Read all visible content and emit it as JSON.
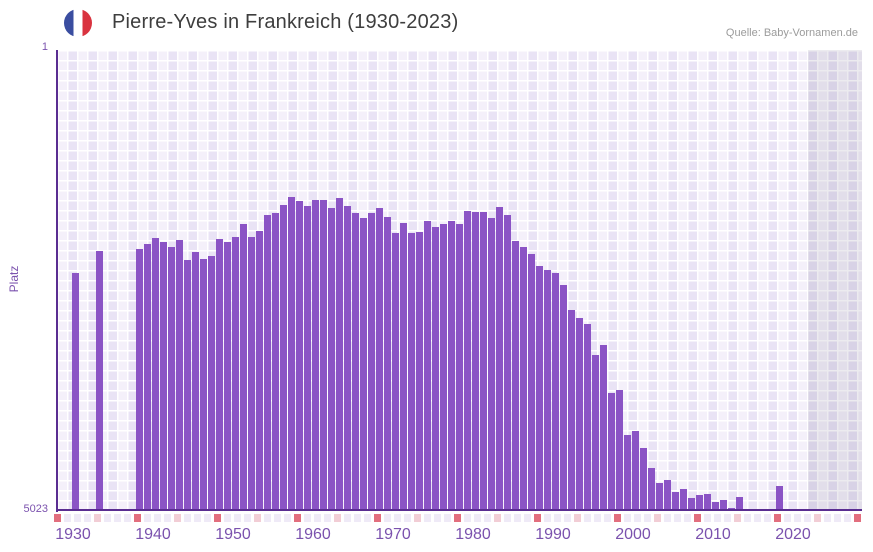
{
  "header": {
    "title": "Pierre-Yves in Frankreich (1930-2023)",
    "source": "Quelle: Baby-Vornamen.de",
    "flag_icon": "france-flag-icon"
  },
  "axes": {
    "y_label": "Platz",
    "y_top_tick": "1",
    "y_bottom_tick": "5023",
    "x_ticks": [
      "1930",
      "1940",
      "1950",
      "1960",
      "1970",
      "1980",
      "1990",
      "2000",
      "2010",
      "2020"
    ]
  },
  "colors": {
    "bar": "#8B54C5",
    "axis_line": "#5A2D91",
    "axis_text": "#7B52AE",
    "title_text": "#3E3E3E",
    "source_text": "#9B9B9B",
    "grid_stripe_light": "#F4F0FA",
    "grid_stripe_dark": "#E9E3F5",
    "tick_red": "#E26E7E",
    "tick_pink": "#F2CDD5",
    "flag_blue": "#3A4DA0",
    "flag_red": "#D9333F"
  },
  "chart_data": {
    "type": "bar",
    "title": "Pierre-Yves in Frankreich (1930-2023)",
    "xlabel": "",
    "ylabel": "Platz",
    "y_axis_inverted": true,
    "ylim": [
      1,
      5023
    ],
    "x_range_years": [
      1928,
      2028
    ],
    "x_ticks": [
      1930,
      1940,
      1950,
      1960,
      1970,
      1980,
      1990,
      2000,
      2010,
      2020
    ],
    "grid": true,
    "legend": "none",
    "no_data_shaded_region_years": [
      2022,
      2028
    ],
    "series_name": "Platz von Pierre-Yves in Frankreich",
    "points": [
      [
        1930,
        2427
      ],
      [
        1933,
        2187
      ],
      [
        1938,
        2172
      ],
      [
        1939,
        2118
      ],
      [
        1940,
        2046
      ],
      [
        1941,
        2089
      ],
      [
        1942,
        2144
      ],
      [
        1943,
        2071
      ],
      [
        1944,
        2292
      ],
      [
        1945,
        2202
      ],
      [
        1946,
        2281
      ],
      [
        1947,
        2245
      ],
      [
        1948,
        2060
      ],
      [
        1949,
        2092
      ],
      [
        1950,
        2043
      ],
      [
        1951,
        1900
      ],
      [
        1952,
        2041
      ],
      [
        1953,
        1969
      ],
      [
        1954,
        1798
      ],
      [
        1955,
        1780
      ],
      [
        1956,
        1686
      ],
      [
        1957,
        1602
      ],
      [
        1958,
        1646
      ],
      [
        1959,
        1700
      ],
      [
        1960,
        1635
      ],
      [
        1961,
        1635
      ],
      [
        1962,
        1719
      ],
      [
        1963,
        1617
      ],
      [
        1964,
        1697
      ],
      [
        1965,
        1780
      ],
      [
        1966,
        1835
      ],
      [
        1967,
        1780
      ],
      [
        1968,
        1725
      ],
      [
        1969,
        1817
      ],
      [
        1970,
        1991
      ],
      [
        1971,
        1889
      ],
      [
        1972,
        1991
      ],
      [
        1973,
        1980
      ],
      [
        1974,
        1864
      ],
      [
        1975,
        1926
      ],
      [
        1976,
        1894
      ],
      [
        1977,
        1869
      ],
      [
        1978,
        1896
      ],
      [
        1979,
        1753
      ],
      [
        1980,
        1766
      ],
      [
        1981,
        1762
      ],
      [
        1982,
        1835
      ],
      [
        1983,
        1708
      ],
      [
        1984,
        1798
      ],
      [
        1985,
        2082
      ],
      [
        1986,
        2144
      ],
      [
        1987,
        2223
      ],
      [
        1988,
        2351
      ],
      [
        1989,
        2397
      ],
      [
        1990,
        2425
      ],
      [
        1991,
        2556
      ],
      [
        1992,
        2828
      ],
      [
        1993,
        2917
      ],
      [
        1994,
        2989
      ],
      [
        1995,
        3324
      ],
      [
        1996,
        3215
      ],
      [
        1997,
        3738
      ],
      [
        1998,
        3702
      ],
      [
        1999,
        4199
      ],
      [
        2000,
        4155
      ],
      [
        2001,
        4333
      ],
      [
        2002,
        4558
      ],
      [
        2003,
        4718
      ],
      [
        2004,
        4682
      ],
      [
        2005,
        4813
      ],
      [
        2006,
        4783
      ],
      [
        2007,
        4885
      ],
      [
        2008,
        4854
      ],
      [
        2009,
        4835
      ],
      [
        2010,
        4922
      ],
      [
        2011,
        4903
      ],
      [
        2012,
        4994
      ],
      [
        2013,
        4874
      ],
      [
        2018,
        4747
      ]
    ]
  }
}
